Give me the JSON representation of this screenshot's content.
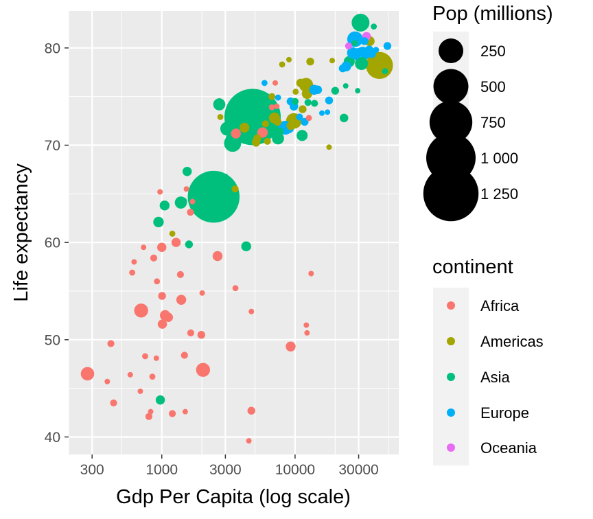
{
  "chart_data": {
    "type": "scatter",
    "xlabel": "Gdp Per Capita (log scale)",
    "ylabel": "Life expectancy",
    "x_scale": "log10",
    "xlim": [
      200,
      60000
    ],
    "ylim": [
      38.2,
      83.8
    ],
    "x_ticks": [
      300,
      1000,
      3000,
      10000,
      30000
    ],
    "x_tick_labels": [
      "300",
      "1000",
      "3000",
      "10000",
      "30000"
    ],
    "y_ticks": [
      40,
      50,
      60,
      70,
      80
    ],
    "y_tick_labels": [
      "40",
      "50",
      "60",
      "70",
      "80"
    ],
    "grid": true,
    "size_legend": {
      "title": "Pop (millions)",
      "values": [
        250,
        500,
        750,
        1000,
        1250
      ],
      "labels": [
        "250",
        "500",
        "750",
        "1 000",
        "1 250"
      ]
    },
    "color_legend": {
      "title": "continent",
      "entries": [
        {
          "name": "Africa",
          "color": "#F8766D"
        },
        {
          "name": "Americas",
          "color": "#A3A500"
        },
        {
          "name": "Asia",
          "color": "#00BF7D"
        },
        {
          "name": "Europe",
          "color": "#00B0F6"
        },
        {
          "name": "Oceania",
          "color": "#E76BF3"
        }
      ]
    },
    "series": [
      {
        "name": "Africa",
        "points": [
          {
            "x": 277,
            "y": 46.5,
            "pop": 74
          },
          {
            "x": 415,
            "y": 49.6,
            "pop": 20
          },
          {
            "x": 390,
            "y": 45.7,
            "pop": 10
          },
          {
            "x": 435,
            "y": 43.5,
            "pop": 20
          },
          {
            "x": 580,
            "y": 46.4,
            "pop": 10
          },
          {
            "x": 620,
            "y": 58.0,
            "pop": 10
          },
          {
            "x": 600,
            "y": 56.9,
            "pop": 15
          },
          {
            "x": 700,
            "y": 53.0,
            "pop": 80
          },
          {
            "x": 730,
            "y": 59.5,
            "pop": 10
          },
          {
            "x": 750,
            "y": 48.3,
            "pop": 15
          },
          {
            "x": 690,
            "y": 44.7,
            "pop": 10
          },
          {
            "x": 800,
            "y": 42.1,
            "pop": 20
          },
          {
            "x": 825,
            "y": 42.6,
            "pop": 12
          },
          {
            "x": 850,
            "y": 46.2,
            "pop": 15
          },
          {
            "x": 870,
            "y": 58.4,
            "pop": 20
          },
          {
            "x": 920,
            "y": 56.0,
            "pop": 15
          },
          {
            "x": 910,
            "y": 48.1,
            "pop": 12
          },
          {
            "x": 970,
            "y": 65.2,
            "pop": 5
          },
          {
            "x": 1000,
            "y": 59.5,
            "pop": 35
          },
          {
            "x": 1005,
            "y": 54.5,
            "pop": 25
          },
          {
            "x": 1010,
            "y": 51.6,
            "pop": 35
          },
          {
            "x": 1060,
            "y": 52.5,
            "pop": 45
          },
          {
            "x": 1120,
            "y": 52.3,
            "pop": 35
          },
          {
            "x": 1200,
            "y": 42.4,
            "pop": 20
          },
          {
            "x": 1280,
            "y": 60.0,
            "pop": 35
          },
          {
            "x": 1380,
            "y": 56.7,
            "pop": 20
          },
          {
            "x": 1400,
            "y": 54.1,
            "pop": 40
          },
          {
            "x": 1480,
            "y": 48.4,
            "pop": 20
          },
          {
            "x": 1500,
            "y": 42.6,
            "pop": 10
          },
          {
            "x": 1530,
            "y": 65.5,
            "pop": 5
          },
          {
            "x": 1640,
            "y": 63.1,
            "pop": 20
          },
          {
            "x": 1650,
            "y": 50.7,
            "pop": 20
          },
          {
            "x": 1700,
            "y": 64.2,
            "pop": 12
          },
          {
            "x": 1980,
            "y": 50.5,
            "pop": 25
          },
          {
            "x": 2010,
            "y": 54.8,
            "pop": 12
          },
          {
            "x": 2040,
            "y": 46.9,
            "pop": 80
          },
          {
            "x": 2620,
            "y": 58.6,
            "pop": 40
          },
          {
            "x": 3570,
            "y": 55.3,
            "pop": 15
          },
          {
            "x": 3600,
            "y": 71.2,
            "pop": 40
          },
          {
            "x": 4500,
            "y": 39.6,
            "pop": 5
          },
          {
            "x": 4700,
            "y": 42.7,
            "pop": 25
          },
          {
            "x": 4700,
            "y": 52.9,
            "pop": 12
          },
          {
            "x": 5700,
            "y": 71.3,
            "pop": 45
          },
          {
            "x": 6700,
            "y": 73.9,
            "pop": 15
          },
          {
            "x": 7300,
            "y": 74.0,
            "pop": 10
          },
          {
            "x": 7100,
            "y": 76.4,
            "pop": 5
          },
          {
            "x": 9270,
            "y": 49.3,
            "pop": 40
          },
          {
            "x": 12150,
            "y": 51.5,
            "pop": 10
          },
          {
            "x": 12300,
            "y": 50.7,
            "pop": 12
          },
          {
            "x": 12700,
            "y": 72.8,
            "pop": 15
          },
          {
            "x": 13200,
            "y": 56.8,
            "pop": 12
          }
        ]
      },
      {
        "name": "Americas",
        "points": [
          {
            "x": 1200,
            "y": 60.9,
            "pop": 15
          },
          {
            "x": 2750,
            "y": 72.9,
            "pop": 15
          },
          {
            "x": 3550,
            "y": 65.5,
            "pop": 20
          },
          {
            "x": 4170,
            "y": 71.8,
            "pop": 40
          },
          {
            "x": 5100,
            "y": 70.3,
            "pop": 30
          },
          {
            "x": 5200,
            "y": 70.7,
            "pop": 25
          },
          {
            "x": 5100,
            "y": 70.2,
            "pop": 20
          },
          {
            "x": 6000,
            "y": 72.2,
            "pop": 20
          },
          {
            "x": 6200,
            "y": 70.4,
            "pop": 20
          },
          {
            "x": 6700,
            "y": 75.0,
            "pop": 20
          },
          {
            "x": 7000,
            "y": 72.8,
            "pop": 50
          },
          {
            "x": 7400,
            "y": 72.4,
            "pop": 25
          },
          {
            "x": 8000,
            "y": 78.3,
            "pop": 15
          },
          {
            "x": 9000,
            "y": 78.8,
            "pop": 5
          },
          {
            "x": 9300,
            "y": 72.0,
            "pop": 30
          },
          {
            "x": 9800,
            "y": 72.5,
            "pop": 100
          },
          {
            "x": 10100,
            "y": 75.5,
            "pop": 15
          },
          {
            "x": 11000,
            "y": 76.4,
            "pop": 30
          },
          {
            "x": 11400,
            "y": 73.7,
            "pop": 25
          },
          {
            "x": 12100,
            "y": 76.2,
            "pop": 80
          },
          {
            "x": 12300,
            "y": 75.3,
            "pop": 45
          },
          {
            "x": 13000,
            "y": 78.6,
            "pop": 25
          },
          {
            "x": 18000,
            "y": 69.8,
            "pop": 5
          },
          {
            "x": 19000,
            "y": 78.7,
            "pop": 12
          },
          {
            "x": 36300,
            "y": 80.7,
            "pop": 40
          },
          {
            "x": 42950,
            "y": 78.2,
            "pop": 300
          }
        ]
      },
      {
        "name": "Asia",
        "points": [
          {
            "x": 975,
            "y": 43.8,
            "pop": 35
          },
          {
            "x": 945,
            "y": 62.1,
            "pop": 45
          },
          {
            "x": 1050,
            "y": 63.8,
            "pop": 40
          },
          {
            "x": 1390,
            "y": 64.1,
            "pop": 60
          },
          {
            "x": 1440,
            "y": 64.2,
            "pop": 30
          },
          {
            "x": 1600,
            "y": 59.8,
            "pop": 25
          },
          {
            "x": 1550,
            "y": 67.3,
            "pop": 35
          },
          {
            "x": 2450,
            "y": 64.7,
            "pop": 1100
          },
          {
            "x": 2470,
            "y": 62.7,
            "pop": 40
          },
          {
            "x": 2700,
            "y": 74.2,
            "pop": 60
          },
          {
            "x": 3000,
            "y": 66.8,
            "pop": 10
          },
          {
            "x": 3100,
            "y": 71.7,
            "pop": 80
          },
          {
            "x": 3200,
            "y": 70.7,
            "pop": 20
          },
          {
            "x": 3400,
            "y": 70.2,
            "pop": 120
          },
          {
            "x": 3800,
            "y": 74.2,
            "pop": 30
          },
          {
            "x": 3900,
            "y": 72.8,
            "pop": 80
          },
          {
            "x": 4300,
            "y": 59.6,
            "pop": 40
          },
          {
            "x": 4800,
            "y": 72.9,
            "pop": 1300
          },
          {
            "x": 4950,
            "y": 74.0,
            "pop": 80
          },
          {
            "x": 7450,
            "y": 70.7,
            "pop": 60
          },
          {
            "x": 7700,
            "y": 71.4,
            "pop": 25
          },
          {
            "x": 10000,
            "y": 74.5,
            "pop": 20
          },
          {
            "x": 11300,
            "y": 71.0,
            "pop": 50
          },
          {
            "x": 12500,
            "y": 74.4,
            "pop": 20
          },
          {
            "x": 14000,
            "y": 74.3,
            "pop": 20
          },
          {
            "x": 20000,
            "y": 75.6,
            "pop": 25
          },
          {
            "x": 23300,
            "y": 72.8,
            "pop": 30
          },
          {
            "x": 24000,
            "y": 76.1,
            "pop": 12
          },
          {
            "x": 25500,
            "y": 78.6,
            "pop": 50
          },
          {
            "x": 28000,
            "y": 80.5,
            "pop": 15
          },
          {
            "x": 29500,
            "y": 75.6,
            "pop": 10
          },
          {
            "x": 31000,
            "y": 82.6,
            "pop": 130
          },
          {
            "x": 31500,
            "y": 78.4,
            "pop": 70
          },
          {
            "x": 39000,
            "y": 82.2,
            "pop": 15
          },
          {
            "x": 47300,
            "y": 77.6,
            "pop": 15
          }
        ]
      },
      {
        "name": "Europe",
        "points": [
          {
            "x": 5900,
            "y": 76.4,
            "pop": 15
          },
          {
            "x": 7450,
            "y": 74.9,
            "pop": 15
          },
          {
            "x": 8450,
            "y": 71.8,
            "pop": 80
          },
          {
            "x": 8950,
            "y": 71.8,
            "pop": 50
          },
          {
            "x": 9250,
            "y": 74.5,
            "pop": 25
          },
          {
            "x": 9800,
            "y": 74.0,
            "pop": 30
          },
          {
            "x": 10800,
            "y": 72.9,
            "pop": 20
          },
          {
            "x": 11800,
            "y": 72.4,
            "pop": 25
          },
          {
            "x": 13900,
            "y": 75.7,
            "pop": 40
          },
          {
            "x": 14800,
            "y": 75.7,
            "pop": 30
          },
          {
            "x": 15900,
            "y": 73.3,
            "pop": 12
          },
          {
            "x": 17500,
            "y": 73.4,
            "pop": 12
          },
          {
            "x": 18000,
            "y": 74.6,
            "pop": 25
          },
          {
            "x": 22800,
            "y": 77.9,
            "pop": 25
          },
          {
            "x": 24200,
            "y": 78.1,
            "pop": 40
          },
          {
            "x": 27000,
            "y": 79.5,
            "pop": 50
          },
          {
            "x": 28200,
            "y": 80.9,
            "pop": 100
          },
          {
            "x": 28700,
            "y": 79.4,
            "pop": 50
          },
          {
            "x": 30500,
            "y": 79.3,
            "pop": 80
          },
          {
            "x": 32200,
            "y": 79.4,
            "pop": 80
          },
          {
            "x": 33200,
            "y": 80.7,
            "pop": 25
          },
          {
            "x": 36000,
            "y": 79.8,
            "pop": 30
          },
          {
            "x": 37500,
            "y": 79.4,
            "pop": 30
          },
          {
            "x": 40500,
            "y": 79.8,
            "pop": 15
          },
          {
            "x": 49300,
            "y": 80.2,
            "pop": 25
          }
        ]
      },
      {
        "name": "Oceania",
        "points": [
          {
            "x": 25200,
            "y": 80.2,
            "pop": 20
          },
          {
            "x": 34400,
            "y": 81.2,
            "pop": 30
          }
        ]
      }
    ]
  }
}
